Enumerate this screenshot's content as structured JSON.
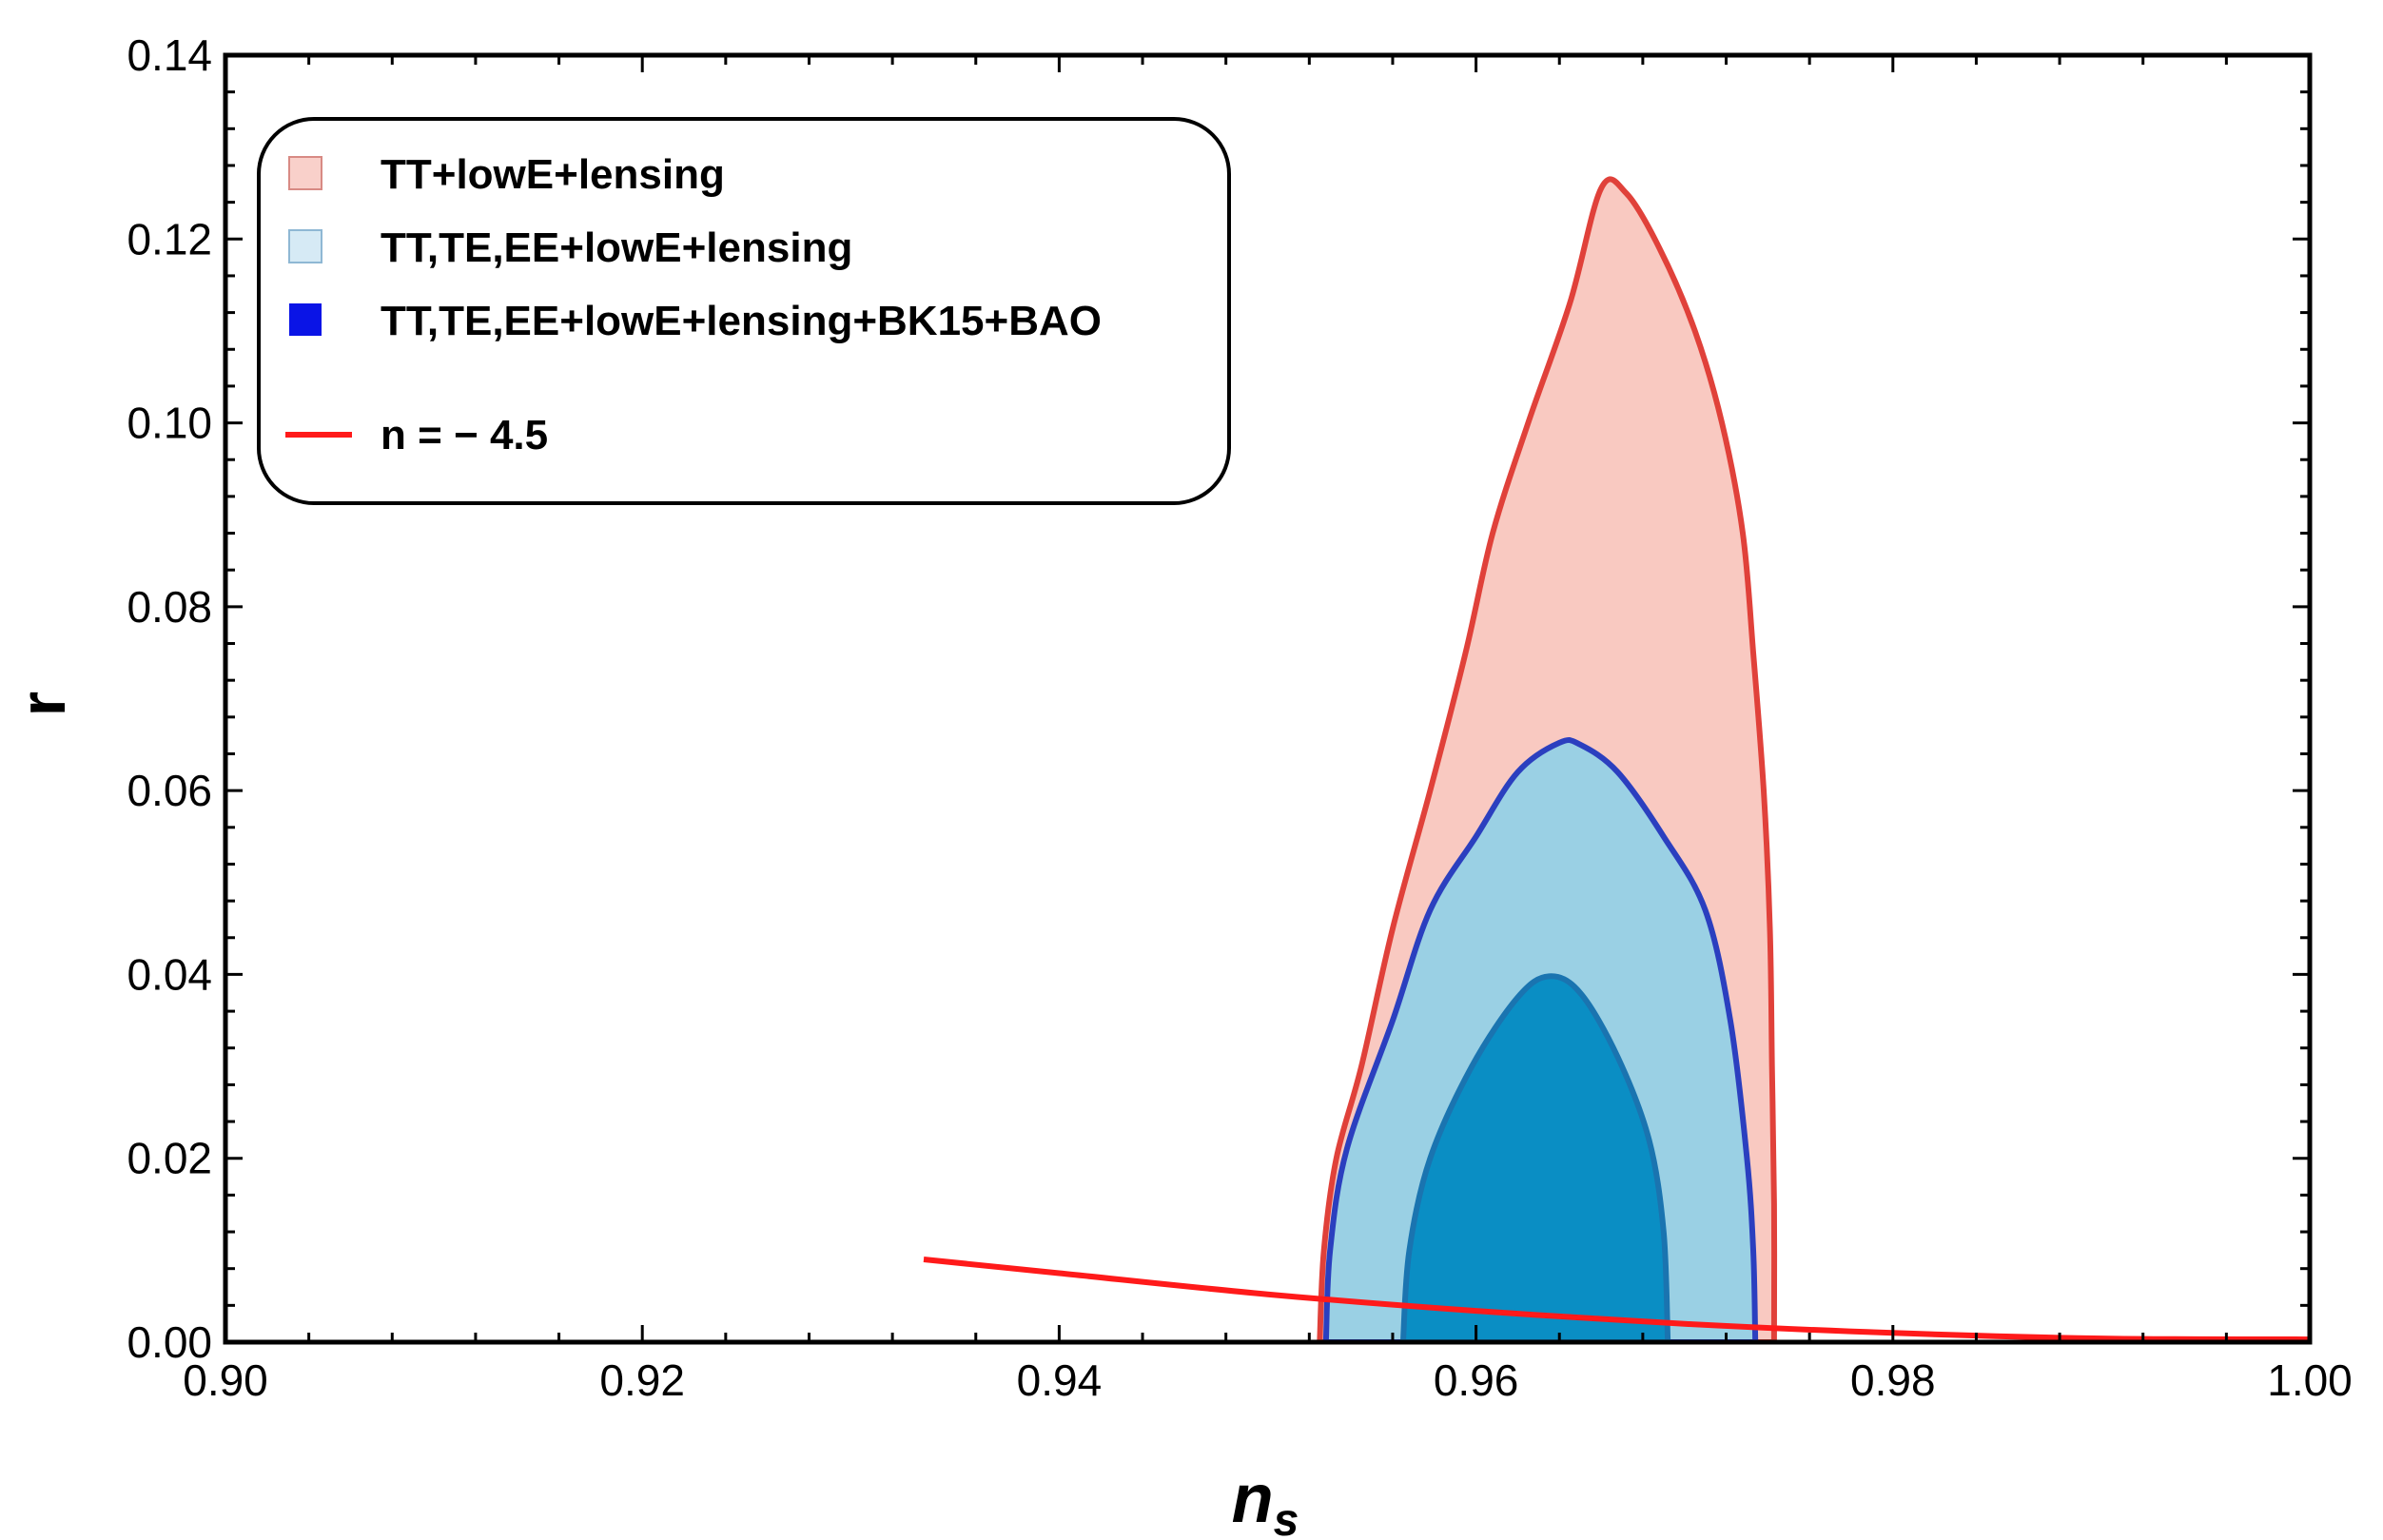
{
  "chart_data": {
    "type": "line",
    "title": "",
    "xlabel": "n",
    "xlabel_sub": "s",
    "ylabel": "r",
    "xlim": [
      0.9,
      1.0
    ],
    "ylim": [
      0.0,
      0.14
    ],
    "x_ticks": [
      "0.90",
      "0.92",
      "0.94",
      "0.96",
      "0.98",
      "1.00"
    ],
    "y_ticks": [
      "0.00",
      "0.02",
      "0.04",
      "0.06",
      "0.08",
      "0.10",
      "0.12",
      "0.14"
    ],
    "grid": false,
    "legend_position": "top-left",
    "series": [
      {
        "name": "TT+lowE+lensing",
        "kind": "contour",
        "fill": "#f9c9c1",
        "stroke": "#e0413a",
        "boundary": [
          [
            0.9525,
            0.0
          ],
          [
            0.9527,
            0.01
          ],
          [
            0.9533,
            0.02
          ],
          [
            0.9545,
            0.03
          ],
          [
            0.956,
            0.045
          ],
          [
            0.9578,
            0.06
          ],
          [
            0.9595,
            0.075
          ],
          [
            0.9608,
            0.088
          ],
          [
            0.9625,
            0.1
          ],
          [
            0.9645,
            0.113
          ],
          [
            0.966,
            0.1255
          ],
          [
            0.9672,
            0.125
          ],
          [
            0.9688,
            0.119
          ],
          [
            0.9705,
            0.11
          ],
          [
            0.9718,
            0.1
          ],
          [
            0.9728,
            0.088
          ],
          [
            0.9733,
            0.075
          ],
          [
            0.9738,
            0.06
          ],
          [
            0.9741,
            0.045
          ],
          [
            0.9742,
            0.03
          ],
          [
            0.9743,
            0.015
          ],
          [
            0.9743,
            0.0
          ]
        ]
      },
      {
        "name": "TT,TE,EE+lowE+lensing",
        "kind": "contour",
        "fill": "#9ad0e4",
        "stroke": "#2b3fbf",
        "boundary": [
          [
            0.9528,
            0.0
          ],
          [
            0.953,
            0.01
          ],
          [
            0.9538,
            0.021
          ],
          [
            0.956,
            0.035
          ],
          [
            0.9578,
            0.047
          ],
          [
            0.96,
            0.055
          ],
          [
            0.962,
            0.062
          ],
          [
            0.964,
            0.0652
          ],
          [
            0.965,
            0.065
          ],
          [
            0.9668,
            0.062
          ],
          [
            0.969,
            0.055
          ],
          [
            0.971,
            0.047
          ],
          [
            0.9722,
            0.035
          ],
          [
            0.973,
            0.02
          ],
          [
            0.9733,
            0.01
          ],
          [
            0.9734,
            0.0
          ]
        ]
      },
      {
        "name": "TT,TE,EE+lowE+lensing+BK15+BAO",
        "kind": "contour",
        "fill": "#0a8ec4",
        "stroke": "#1a74b0",
        "boundary": [
          [
            0.9565,
            0.0
          ],
          [
            0.9568,
            0.01
          ],
          [
            0.9578,
            0.02
          ],
          [
            0.9598,
            0.03
          ],
          [
            0.962,
            0.0375
          ],
          [
            0.9635,
            0.0398
          ],
          [
            0.965,
            0.038
          ],
          [
            0.9668,
            0.031
          ],
          [
            0.9683,
            0.022
          ],
          [
            0.969,
            0.012
          ],
          [
            0.9692,
            0.0
          ]
        ]
      },
      {
        "name": "n = − 4.5",
        "kind": "line",
        "color": "#ff1a1a",
        "points": [
          [
            0.9335,
            0.009
          ],
          [
            0.94,
            0.0075
          ],
          [
            0.95,
            0.0052
          ],
          [
            0.96,
            0.0034
          ],
          [
            0.97,
            0.002
          ],
          [
            0.98,
            0.001
          ],
          [
            0.99,
            0.0004
          ],
          [
            1.0,
            0.0003
          ]
        ]
      }
    ]
  }
}
